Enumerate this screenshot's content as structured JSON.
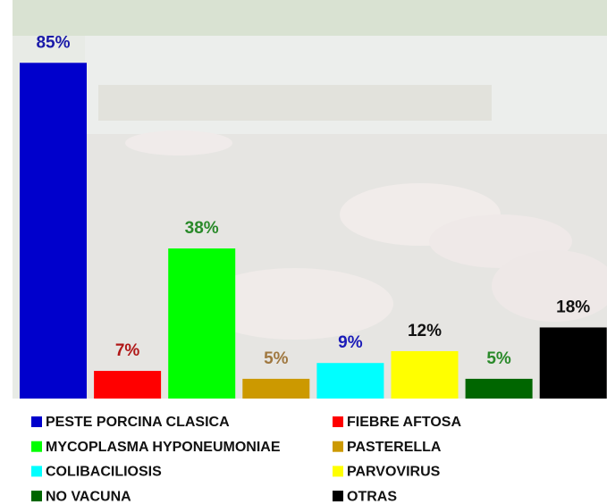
{
  "chart_data": {
    "type": "bar",
    "categories": [
      "PESTE PORCINA CLASICA",
      "FIEBRE AFTOSA",
      "MYCOPLASMA HYPONEUMONIAE",
      "PASTERELLA",
      "COLIBACILIOSIS",
      "PARVOVIRUS",
      "NO VACUNA",
      "OTRAS"
    ],
    "values": [
      85,
      7,
      38,
      5,
      9,
      12,
      5,
      18
    ],
    "value_labels": [
      "85%",
      "7%",
      "38%",
      "5%",
      "9%",
      "12%",
      "5%",
      "18%"
    ],
    "colors": [
      "#0000cc",
      "#ff0000",
      "#00ff00",
      "#cc9900",
      "#00ffff",
      "#ffff00",
      "#006600",
      "#000000"
    ],
    "label_colors": [
      "#1a1aa8",
      "#b01818",
      "#2a8a2a",
      "#a07840",
      "#1a1ab8",
      "#111111",
      "#2a8a2a",
      "#111111"
    ]
  }
}
